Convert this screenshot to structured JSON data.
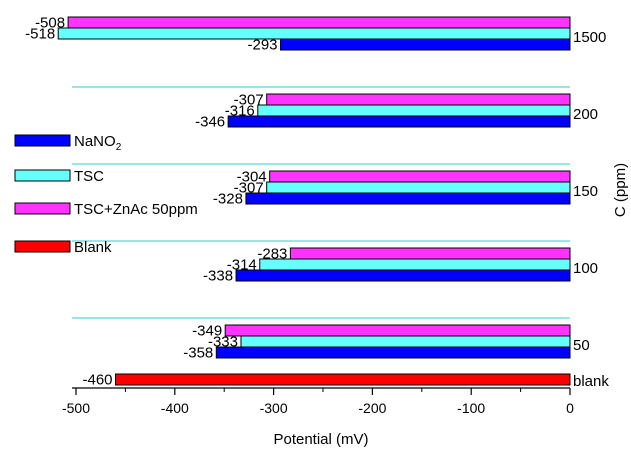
{
  "chart_data": {
    "type": "bar",
    "orientation": "horizontal",
    "xlabel": "Potential (mV)",
    "ylabel": "C (ppm)",
    "xlim": [
      -540,
      0
    ],
    "xticks": [
      -500,
      -400,
      -300,
      -200,
      -100,
      0
    ],
    "categories": [
      "blank",
      "50",
      "100",
      "150",
      "200",
      "1500"
    ],
    "series": [
      {
        "name": "NaNO2",
        "color": "#0000ff",
        "values": [
          null,
          -358,
          -338,
          -328,
          -346,
          -293
        ]
      },
      {
        "name": "TSC",
        "color": "#66ffff",
        "values": [
          null,
          -333,
          -314,
          -307,
          -316,
          -518
        ]
      },
      {
        "name": "TSC+ZnAc 50ppm",
        "color": "#ff33ff",
        "values": [
          null,
          -349,
          -283,
          -304,
          -307,
          -508
        ]
      },
      {
        "name": "Blank",
        "color": "#ff0000",
        "values": [
          -460,
          null,
          null,
          null,
          null,
          null
        ]
      }
    ],
    "legend": {
      "position": "left",
      "entries": [
        {
          "label": "NaNO",
          "subscript": "2",
          "color": "#0000ff"
        },
        {
          "label": "TSC",
          "subscript": "",
          "color": "#66ffff"
        },
        {
          "label": "TSC+ZnAc 50ppm",
          "subscript": "",
          "color": "#ff33ff"
        },
        {
          "label": "Blank",
          "subscript": "",
          "color": "#ff0000"
        }
      ]
    },
    "separator_color": "#33cccc",
    "grid": false
  }
}
